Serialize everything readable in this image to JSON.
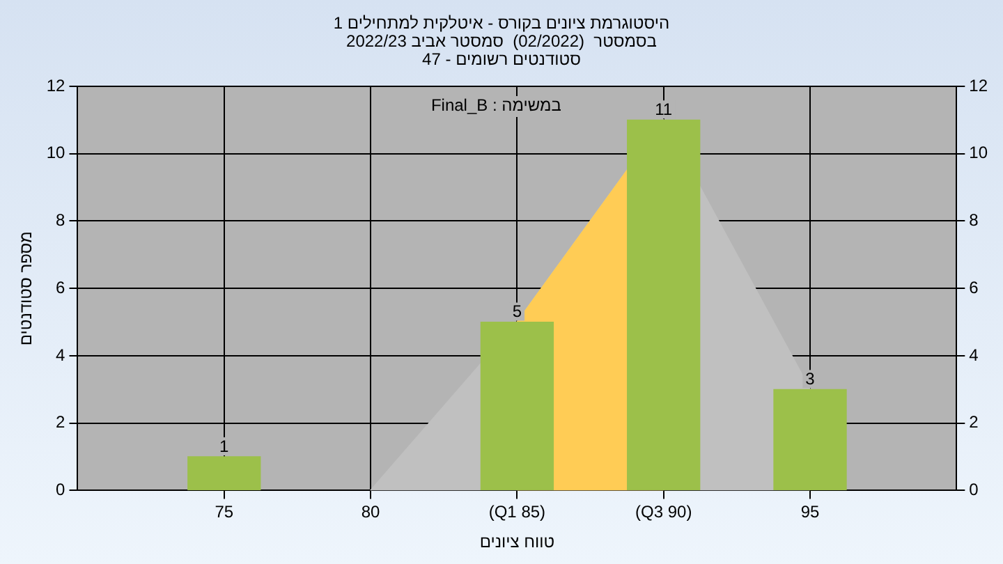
{
  "chart_data": {
    "type": "bar",
    "title": "היסטוגרמת ציונים בקורס - איטלקית למתחילים 1\nבסמסטר  (02/2022)  סמסטר אביב 2022/23\nסטודנטים רשומים - 47",
    "xlabel": "טווח ציונים",
    "ylabel": "מספר סטודנטים",
    "annotations": [
      "במשימה : Final_B"
    ],
    "x": [
      75,
      85,
      90,
      95
    ],
    "series": [
      {
        "color": "#9cc04a",
        "values": [
          1,
          5,
          11,
          3
        ],
        "value_labels": [
          "1",
          "5",
          "11",
          "3"
        ]
      },
      {
        "type": "area",
        "color": "#ffcc55",
        "x": [
          85,
          90
        ],
        "values": [
          5,
          11
        ]
      },
      {
        "type": "area",
        "color": "#c0c0c0",
        "x": [
          80,
          85,
          90,
          95
        ],
        "values": [
          0,
          5,
          11,
          3
        ]
      }
    ],
    "xlim": [
      70,
      100
    ],
    "xticks": [
      75,
      80,
      {
        "value": 85,
        "label": "(Q1 85)"
      },
      {
        "value": 90,
        "label": "(Q3 90)"
      },
      95
    ],
    "ylim": [
      0,
      12
    ],
    "yticks": [
      0,
      2,
      4,
      6,
      8,
      10,
      12
    ],
    "y2lim": [
      0,
      12
    ],
    "y2ticks": [
      0,
      2,
      4,
      6,
      8,
      10,
      12
    ],
    "grid": true,
    "legend": false
  }
}
